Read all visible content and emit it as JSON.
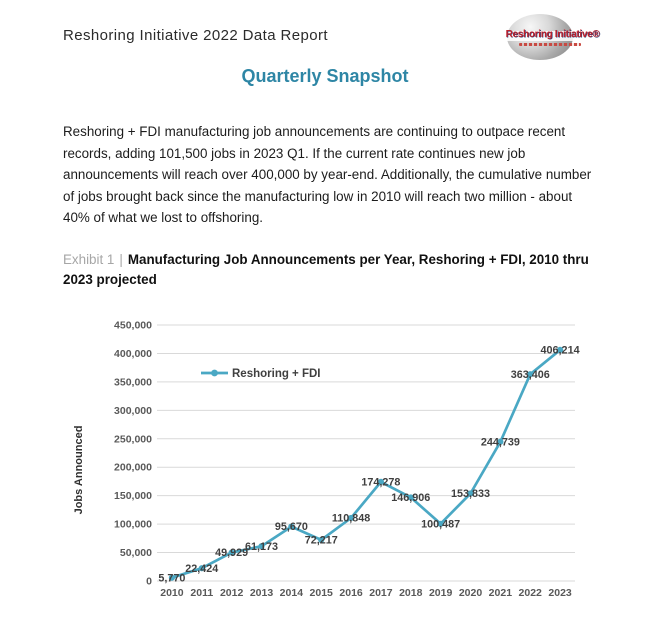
{
  "header": {
    "report_title": "Reshoring Initiative 2022 Data Report",
    "logo": {
      "text": "Reshoring Initiative®"
    }
  },
  "page_title": "Quarterly Snapshot",
  "intro_paragraph": "Reshoring + FDI manufacturing job announcements are continuing to outpace recent records, adding 101,500 jobs in 2023 Q1. If the current rate continues new job announcements will reach over 400,000 by year-end. Additionally, the cumulative number of jobs brought back since the manufacturing low in 2010 will reach two million - about 40% of what we lost to offshoring.",
  "exhibit": {
    "label": "Exhibit 1",
    "separator": "|",
    "title": "Manufacturing Job Announcements per Year, Reshoring + FDI, 2010 thru 2023 projected"
  },
  "chart_data": {
    "type": "line",
    "title": "",
    "xlabel": "",
    "ylabel": "Jobs Announced",
    "categories": [
      "2010",
      "2011",
      "2012",
      "2013",
      "2014",
      "2015",
      "2016",
      "2017",
      "2018",
      "2019",
      "2020",
      "2021",
      "2022",
      "2023"
    ],
    "series": [
      {
        "name": "Reshoring + FDI",
        "values": [
          5770,
          22424,
          49929,
          61173,
          95670,
          72217,
          110848,
          174278,
          146906,
          100487,
          153833,
          244739,
          363406,
          406214
        ]
      }
    ],
    "ylim": [
      0,
      450000
    ],
    "ytick_step": 50000,
    "grid": true,
    "legend_position": "inside-top-left",
    "data_labels": "centered-on-points",
    "line_color": "#4aa8c4",
    "marker": "circle",
    "gridline_color": "#d9d9d9",
    "tick_color": "#595959",
    "data_label_color": "#3f3f3f"
  },
  "colors": {
    "accent_teal": "#2e86a5",
    "exhibit_gray": "#a6a6a6",
    "logo_red": "#c0202a"
  }
}
